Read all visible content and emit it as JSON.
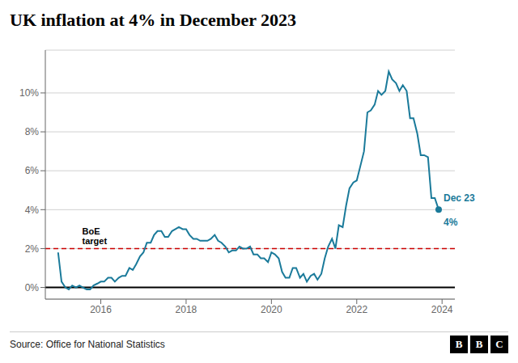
{
  "chart_data": {
    "type": "line",
    "title": "UK inflation at 4% in December 2023",
    "source": "Source: Office for National Statistics",
    "logo": "BBC",
    "color": "#1a7a9a",
    "grid": true,
    "x": [
      2015.0,
      2015.08,
      2015.17,
      2015.25,
      2015.33,
      2015.42,
      2015.5,
      2015.58,
      2015.67,
      2015.75,
      2015.83,
      2015.92,
      2016.0,
      2016.08,
      2016.17,
      2016.25,
      2016.33,
      2016.42,
      2016.5,
      2016.58,
      2016.67,
      2016.75,
      2016.83,
      2016.92,
      2017.0,
      2017.08,
      2017.17,
      2017.25,
      2017.33,
      2017.42,
      2017.5,
      2017.58,
      2017.67,
      2017.75,
      2017.83,
      2017.92,
      2018.0,
      2018.08,
      2018.17,
      2018.25,
      2018.33,
      2018.42,
      2018.5,
      2018.58,
      2018.67,
      2018.75,
      2018.83,
      2018.92,
      2019.0,
      2019.08,
      2019.17,
      2019.25,
      2019.33,
      2019.42,
      2019.5,
      2019.58,
      2019.67,
      2019.75,
      2019.83,
      2019.92,
      2020.0,
      2020.08,
      2020.17,
      2020.25,
      2020.33,
      2020.42,
      2020.5,
      2020.58,
      2020.67,
      2020.75,
      2020.83,
      2020.92,
      2021.0,
      2021.08,
      2021.17,
      2021.25,
      2021.33,
      2021.42,
      2021.5,
      2021.58,
      2021.67,
      2021.75,
      2021.83,
      2021.92,
      2022.0,
      2022.08,
      2022.17,
      2022.25,
      2022.33,
      2022.42,
      2022.5,
      2022.58,
      2022.67,
      2022.75,
      2022.83,
      2022.92,
      2023.0,
      2023.08,
      2023.17,
      2023.25,
      2023.33,
      2023.42,
      2023.5,
      2023.58,
      2023.67,
      2023.75,
      2023.83,
      2023.92
    ],
    "values": [
      1.8,
      0.3,
      0.0,
      -0.1,
      0.1,
      0.0,
      0.1,
      0.0,
      -0.1,
      -0.1,
      0.1,
      0.2,
      0.3,
      0.3,
      0.5,
      0.5,
      0.3,
      0.5,
      0.6,
      0.6,
      1.0,
      0.9,
      1.2,
      1.6,
      1.8,
      2.3,
      2.3,
      2.7,
      2.9,
      2.9,
      2.6,
      2.6,
      2.9,
      3.0,
      3.1,
      3.0,
      3.0,
      2.7,
      2.5,
      2.5,
      2.4,
      2.4,
      2.4,
      2.5,
      2.7,
      2.4,
      2.3,
      2.1,
      1.8,
      1.9,
      1.9,
      2.1,
      2.0,
      2.0,
      2.1,
      1.7,
      1.7,
      1.5,
      1.5,
      1.3,
      1.8,
      1.7,
      1.5,
      0.8,
      0.5,
      0.5,
      1.0,
      1.0,
      0.5,
      0.7,
      0.3,
      0.6,
      0.7,
      0.4,
      0.7,
      1.5,
      2.1,
      2.5,
      2.0,
      3.2,
      3.1,
      4.2,
      5.1,
      5.4,
      5.5,
      6.2,
      7.0,
      9.0,
      9.1,
      9.4,
      10.1,
      9.9,
      10.1,
      11.1,
      10.7,
      10.5,
      10.1,
      10.4,
      10.1,
      8.7,
      8.7,
      7.9,
      6.8,
      6.8,
      6.7,
      4.6,
      4.6,
      4.0
    ],
    "xlim": [
      2014.7,
      2024.3
    ],
    "xticks": [
      2016,
      2018,
      2020,
      2022,
      2024
    ],
    "ylim": [
      -0.6,
      12.2
    ],
    "yticks": [
      {
        "value": 0,
        "label": "0%"
      },
      {
        "value": 2,
        "label": "2%"
      },
      {
        "value": 4,
        "label": "4%"
      },
      {
        "value": 6,
        "label": "6%"
      },
      {
        "value": 8,
        "label": "8%"
      },
      {
        "value": 10,
        "label": "10%"
      }
    ],
    "reference_lines": [
      {
        "value": 2.0,
        "color": "#cc0000",
        "line_style": "dashed",
        "label": "BoE\ntarget"
      },
      {
        "value": 0,
        "color": "#000000",
        "line_style": "solid"
      }
    ],
    "annotations": [
      {
        "x": 2023.92,
        "y": 4.0,
        "color": "#1a7a9a",
        "lines": [
          "Dec 23",
          "4%"
        ]
      }
    ]
  }
}
